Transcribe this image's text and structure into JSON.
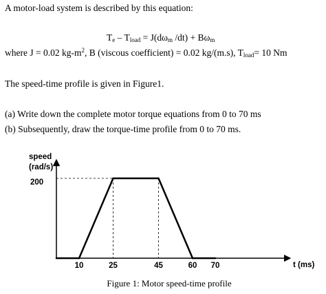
{
  "problem": {
    "intro": "A motor-load system is described by this equation:",
    "equation": {
      "te": "T",
      "te_sub": "e",
      "minus": " – ",
      "tload": "T",
      "tload_sub": "load",
      "rhs_a": " = J(dω",
      "m1_sub": "m",
      "rhs_b": " /dt) + Bω",
      "m2_sub": "m"
    },
    "where": {
      "a": "where J = 0.02 kg-m",
      "sup2": "2",
      "b": ", B (viscous coefficient) = 0.02 kg/(m.s), T",
      "load_sub": "load",
      "c": "= 10 Nm"
    },
    "profile_text": "The speed-time profile is given in Figure1.",
    "question_a": "(a) Write down the complete motor torque equations from 0 to 70 ms",
    "question_b": "(b) Subsequently, draw the torque-time profile from 0 to 70 ms."
  },
  "chart_data": {
    "type": "line",
    "ylabel_line1": "speed",
    "ylabel_line2": "(rad/s)",
    "xlabel": "t (ms)",
    "x": [
      0,
      10,
      25,
      45,
      60,
      70
    ],
    "y": [
      0,
      0,
      200,
      200,
      0,
      0
    ],
    "x_ticks": [
      "10",
      "25",
      "45",
      "60",
      "70"
    ],
    "y_ticks": [
      "200"
    ],
    "xlim": [
      0,
      70
    ],
    "ylim": [
      0,
      200
    ],
    "guides": "dashed",
    "grid": false,
    "caption": "Figure 1: Motor speed-time profile"
  }
}
